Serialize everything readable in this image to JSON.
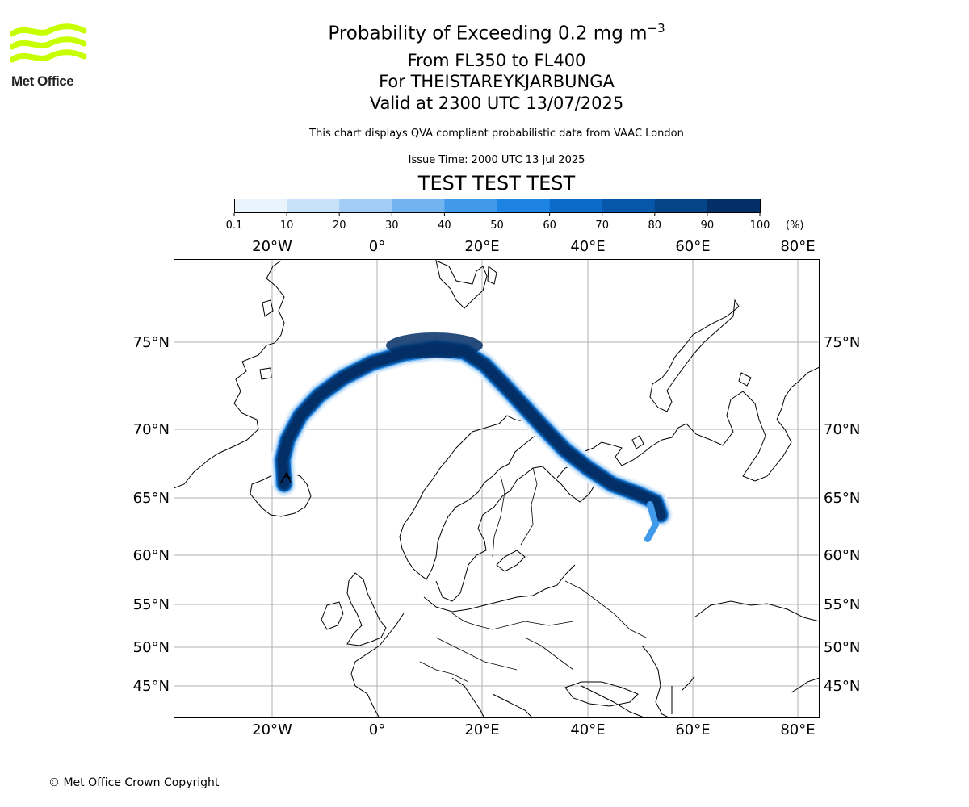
{
  "logo": {
    "text": "Met Office",
    "color": "#c8ff00"
  },
  "title": {
    "line1_main": "Probability of Exceeding 0.2 mg m",
    "line1_sup": "−3",
    "line2": "From FL350 to FL400",
    "line3": "For THEISTAREYKJARBUNGA",
    "line4": "Valid at 2300 UTC 13/07/2025",
    "note": "This chart displays QVA compliant probabilistic data from VAAC London",
    "issue": "Issue Time: 2000 UTC 13 Jul 2025",
    "test_banner": "TEST TEST TEST",
    "test_color": "#e00000"
  },
  "colorbar": {
    "tick_labels": [
      "0.1",
      "10",
      "20",
      "30",
      "40",
      "50",
      "60",
      "70",
      "80",
      "90",
      "100"
    ],
    "unit": "(%)",
    "colors": [
      "#eaf4fd",
      "#c8e2f9",
      "#a2cdf6",
      "#72b4f0",
      "#4199ea",
      "#1e84e3",
      "#0c6bc9",
      "#0656a9",
      "#044588",
      "#032f66"
    ]
  },
  "map": {
    "lon_labels": [
      "20°W",
      "0°",
      "20°E",
      "40°E",
      "60°E",
      "80°E"
    ],
    "lat_labels": [
      "75°N",
      "70°N",
      "65°N",
      "60°N",
      "55°N",
      "50°N",
      "45°N"
    ]
  },
  "copyright": "© Met Office Crown Copyright"
}
